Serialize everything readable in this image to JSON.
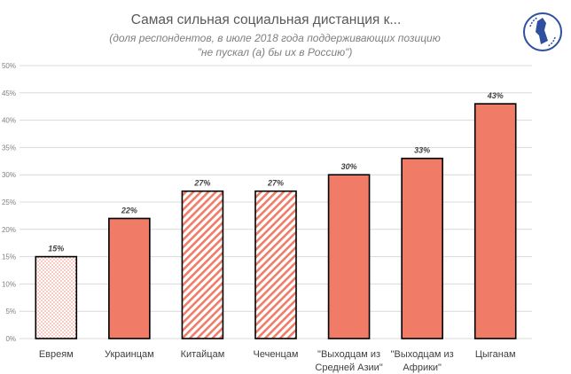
{
  "chart_data": {
    "type": "bar",
    "title": "Самая сильная социальная дистанция к...",
    "subtitle_line1": "(доля респондентов, в июле 2018 года поддерживающих позицию",
    "subtitle_line2": "\"не пускал (а) бы их в Россию\")",
    "categories": [
      [
        "Евреям"
      ],
      [
        "Украинцам"
      ],
      [
        "Китайцам"
      ],
      [
        "Чеченцам"
      ],
      [
        "\"Выходцам из",
        "Средней Азии\""
      ],
      [
        "\"Выходцам из",
        "Африки\""
      ],
      [
        "Цыганам"
      ]
    ],
    "values": [
      15,
      22,
      27,
      27,
      30,
      33,
      43
    ],
    "data_labels": [
      "15%",
      "22%",
      "27%",
      "27%",
      "30%",
      "33%",
      "43%"
    ],
    "fill_styles": [
      "dotted",
      "solid",
      "hatched",
      "hatched",
      "solid",
      "solid",
      "solid"
    ],
    "ylim": [
      0,
      50
    ],
    "y_ticks": [
      0,
      5,
      10,
      15,
      20,
      25,
      30,
      35,
      40,
      45,
      50
    ],
    "y_tick_labels": [
      "0%",
      "5%",
      "10%",
      "15%",
      "20%",
      "25%",
      "30%",
      "35%",
      "40%",
      "45%",
      "50%"
    ],
    "grid": true,
    "legend": "none",
    "colors": {
      "bar": "#f07c68",
      "outline": "#000000",
      "grid": "#d9d9d9",
      "logo": "#2f4f9f"
    }
  },
  "logo": {
    "icon": "levada-center-logo"
  }
}
